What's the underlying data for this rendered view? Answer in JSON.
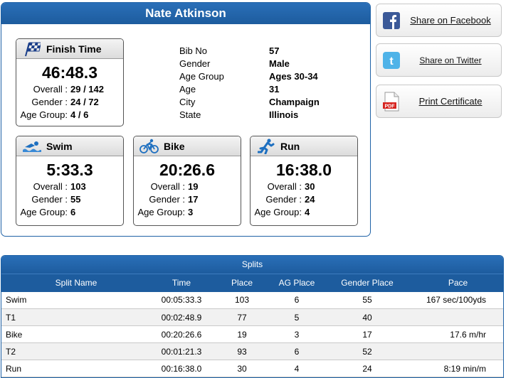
{
  "athlete": {
    "name": "Nate Atkinson",
    "finish": {
      "title": "Finish Time",
      "time": "46:48.3",
      "overall_label": "Overall :",
      "overall_value": "29 / 142",
      "gender_label": "Gender :",
      "gender_value": "24 / 72",
      "age_group_label": "Age Group:",
      "age_group_value": "4 / 6"
    },
    "info": [
      {
        "label": "Bib No",
        "value": "57"
      },
      {
        "label": "Gender",
        "value": "Male"
      },
      {
        "label": "Age Group",
        "value": "Ages 30-34"
      },
      {
        "label": "Age",
        "value": "31"
      },
      {
        "label": "City",
        "value": "Champaign"
      },
      {
        "label": "State",
        "value": "Illinois"
      }
    ],
    "segments": [
      {
        "title": "Swim",
        "icon": "swimmer-icon",
        "time": "5:33.3",
        "overall_label": "Overall :",
        "overall_value": "103",
        "gender_label": "Gender :",
        "gender_value": "55",
        "age_group_label": "Age Group:",
        "age_group_value": "6"
      },
      {
        "title": "Bike",
        "icon": "cyclist-icon",
        "time": "20:26.6",
        "overall_label": "Overall :",
        "overall_value": "19",
        "gender_label": "Gender :",
        "gender_value": "17",
        "age_group_label": "Age Group:",
        "age_group_value": "3"
      },
      {
        "title": "Run",
        "icon": "runner-icon",
        "time": "16:38.0",
        "overall_label": "Overall :",
        "overall_value": "30",
        "gender_label": "Gender :",
        "gender_value": "24",
        "age_group_label": "Age Group:",
        "age_group_value": "4"
      }
    ]
  },
  "share": {
    "facebook_label": "Share on Facebook",
    "twitter_label": "Share on Twitter",
    "certificate_label": "Print Certificate",
    "pdf_badge": "PDF"
  },
  "splits": {
    "title": "Splits",
    "columns": [
      "Split Name",
      "Time",
      "Place",
      "AG Place",
      "Gender Place",
      "Pace"
    ],
    "rows": [
      [
        "Swim",
        "00:05:33.3",
        "103",
        "6",
        "55",
        "167 sec/100yds"
      ],
      [
        "T1",
        "00:02:48.9",
        "77",
        "5",
        "40",
        ""
      ],
      [
        "Bike",
        "00:20:26.6",
        "19",
        "3",
        "17",
        "17.6 m/hr"
      ],
      [
        "T2",
        "00:01:21.3",
        "93",
        "6",
        "52",
        ""
      ],
      [
        "Run",
        "00:16:38.0",
        "30",
        "4",
        "24",
        "8:19 min/m"
      ]
    ]
  },
  "colors": {
    "header_blue": "#1d5c9e",
    "facebook": "#3b5998",
    "twitter": "#4fb3e8",
    "pdf_red": "#d6231e"
  }
}
